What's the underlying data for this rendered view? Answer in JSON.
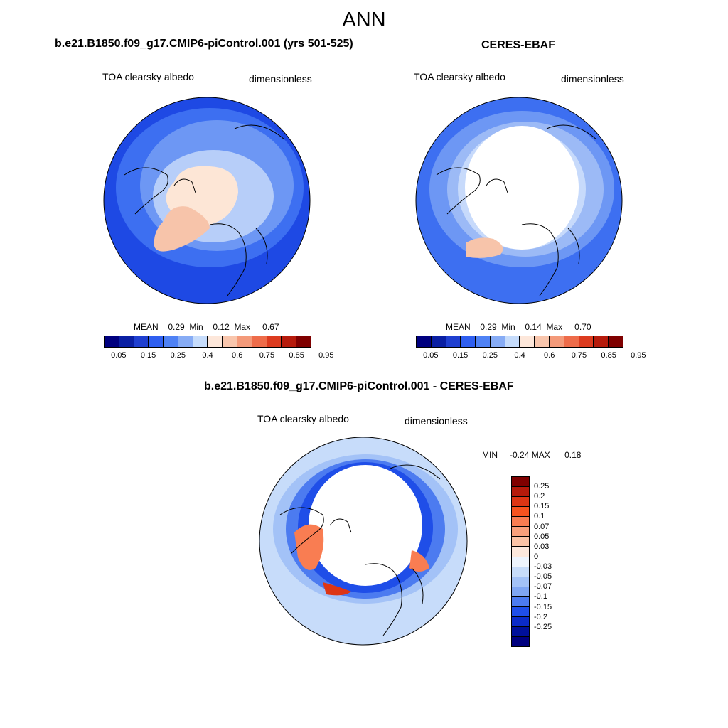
{
  "season": "ANN",
  "panels": {
    "model": {
      "title": "b.e21.B1850.f09_g17.CMIP6-piControl.001 (yrs 501-525)",
      "variable": "TOA clearsky albedo",
      "units": "dimensionless",
      "stats": {
        "mean_label": "MEAN=",
        "mean": "0.29",
        "min_label": "Min=",
        "min": "0.12",
        "max_label": "Max=",
        "max": "0.67"
      }
    },
    "obs": {
      "title": "CERES-EBAF",
      "variable": "TOA clearsky albedo",
      "units": "dimensionless",
      "stats": {
        "mean_label": "MEAN=",
        "mean": "0.29",
        "min_label": "Min=",
        "min": "0.14",
        "max_label": "Max=",
        "max": "0.70"
      }
    },
    "diff": {
      "title": "b.e21.B1850.f09_g17.CMIP6-piControl.001 - CERES-EBAF",
      "variable": "TOA clearsky albedo",
      "units": "dimensionless",
      "stats": {
        "min_label": "MIN =",
        "min": "-0.24",
        "max_label": "MAX =",
        "max": "0.18"
      }
    }
  },
  "colorbars": {
    "main": {
      "colors": [
        "#00007f",
        "#0a1fa3",
        "#1f3fd0",
        "#2f5ff0",
        "#4f82f5",
        "#87acf5",
        "#c6dcfb",
        "#fde7da",
        "#f9c6ad",
        "#f49a7a",
        "#ee6c4a",
        "#dc3b1f",
        "#b61b0c",
        "#7f0000"
      ],
      "ticks": [
        "0.05",
        "0.15",
        "0.25",
        "0.4",
        "0.6",
        "0.75",
        "0.85",
        "0.95"
      ]
    },
    "diff": {
      "colors": [
        "#7f0000",
        "#b51a0b",
        "#dd3514",
        "#f7531f",
        "#f97d52",
        "#f9a07c",
        "#fcc3a6",
        "#fde8dc",
        "#eef4fd",
        "#c7dcfa",
        "#a3c2f7",
        "#7fa6f3",
        "#4c7bf0",
        "#1f4ee8",
        "#0b2bc8",
        "#00109a",
        "#00007f"
      ],
      "ticks": [
        "0.25",
        "0.2",
        "0.15",
        "0.1",
        "0.07",
        "0.05",
        "0.03",
        "0",
        "-0.03",
        "-0.05",
        "-0.07",
        "-0.1",
        "-0.15",
        "-0.2",
        "-0.25"
      ]
    }
  },
  "map_colors": {
    "model": {
      "outer": "#1e49e4",
      "mid": "#3d6ff1",
      "inner": "#6d97f4",
      "ring": "#b7cef9",
      "cap": "#fde6d6",
      "greenland": "#f7c4aa"
    },
    "obs": {
      "outer": "#3d6ff1",
      "mid": "#6d97f4",
      "inner": "#9cbaf6",
      "ring": "#c7dafb",
      "cap": "#ffffff",
      "greenland": "#f7c4aa"
    },
    "diff": {
      "outer": "#c7dcfa",
      "mid": "#a3c2f7",
      "inner": "#4c7bf0",
      "ring": "#1f4ee8",
      "cap": "#ffffff",
      "warm": "#f97d52",
      "hot": "#dd3514"
    }
  }
}
